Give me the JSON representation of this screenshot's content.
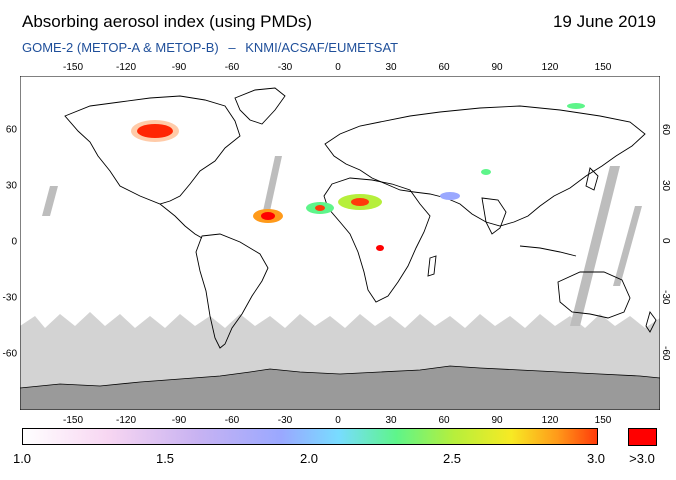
{
  "header": {
    "title": "Absorbing aerosol index (using PMDs)",
    "date": "19 June 2019",
    "subtitle_instrument": "GOME-2 (METOP-A & METOP-B)",
    "subtitle_separator": "–",
    "subtitle_source": "KNMI/ACSAF/EUMETSAT"
  },
  "axes": {
    "lon_ticks": [
      "-150",
      "-120",
      "-90",
      "-60",
      "-30",
      "0",
      "30",
      "60",
      "90",
      "120",
      "150"
    ],
    "lat_ticks": [
      "60",
      "30",
      "0",
      "-30",
      "-60"
    ]
  },
  "colorbar": {
    "labels": [
      "1.0",
      "1.5",
      "2.0",
      "2.5",
      "3.0"
    ],
    "over_label": ">3.0",
    "colors": [
      "#ffffff",
      "#f7d6f2",
      "#c9b3f2",
      "#9aa8ff",
      "#78dcff",
      "#5ef58a",
      "#b6ef3c",
      "#f7ea24",
      "#ff9a1a",
      "#ff3a0a"
    ],
    "over_color": "#ff0000"
  },
  "map_colors": {
    "ocean": "#ffffff",
    "no_data_light": "#d3d3d3",
    "no_data_dark": "#9a9a9a",
    "coast": "#000000"
  }
}
